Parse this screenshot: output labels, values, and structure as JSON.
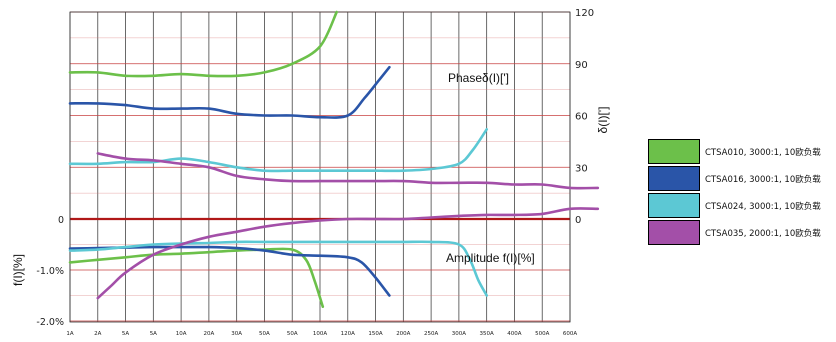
{
  "chart_data": {
    "type": "line",
    "x_ticks": [
      "1A",
      "2A",
      "5A",
      "5A",
      "10A",
      "20A",
      "30A",
      "50A",
      "50A",
      "100A",
      "120A",
      "150A",
      "200A",
      "250A",
      "300A",
      "350A",
      "400A",
      "500A",
      "600A"
    ],
    "left_axis": {
      "label": "f(I)[%]",
      "ticks": [
        {
          "value": 0,
          "label": "0"
        },
        {
          "value": -1,
          "label": "-1.0%"
        },
        {
          "value": -2,
          "label": "-2.0%"
        }
      ],
      "range": [
        -2,
        0.5
      ]
    },
    "right_axis": {
      "label": "δ(I)[']",
      "ticks": [
        120,
        90,
        60,
        30,
        0
      ],
      "range": [
        0,
        120
      ]
    },
    "annotations": {
      "phase": "Phaseδ(I)[']",
      "amplitude": "Amplitude f(I)[%]"
    },
    "series": [
      {
        "name": "CTSA010, 3000:1, 10欧负载",
        "color": "#6cc04a",
        "phase": [
          [
            0,
            85
          ],
          [
            1,
            85
          ],
          [
            2,
            83
          ],
          [
            3,
            83
          ],
          [
            4,
            84
          ],
          [
            5,
            83
          ],
          [
            6,
            83
          ],
          [
            7,
            85
          ],
          [
            8,
            90
          ],
          [
            9,
            100
          ],
          [
            9.6,
            120
          ]
        ],
        "amplitude": [
          [
            0,
            -0.85
          ],
          [
            1,
            -0.8
          ],
          [
            2,
            -0.75
          ],
          [
            3,
            -0.7
          ],
          [
            4,
            -0.68
          ],
          [
            5,
            -0.65
          ],
          [
            6,
            -0.62
          ],
          [
            7,
            -0.6
          ],
          [
            8,
            -0.6
          ],
          [
            8.5,
            -0.8
          ],
          [
            8.8,
            -1.2
          ],
          [
            9.1,
            -1.72
          ]
        ]
      },
      {
        "name": "CTSA016, 3000:1, 10欧负载",
        "color": "#2a55a8",
        "phase": [
          [
            0,
            67
          ],
          [
            1,
            67
          ],
          [
            2,
            66
          ],
          [
            3,
            64
          ],
          [
            4,
            64
          ],
          [
            5,
            64
          ],
          [
            6,
            61
          ],
          [
            7,
            60
          ],
          [
            8,
            60
          ],
          [
            9,
            59
          ],
          [
            10,
            60
          ],
          [
            10.6,
            70
          ],
          [
            11.1,
            80
          ],
          [
            11.5,
            88
          ]
        ],
        "amplitude": [
          [
            0,
            -0.58
          ],
          [
            1,
            -0.57
          ],
          [
            2,
            -0.56
          ],
          [
            3,
            -0.55
          ],
          [
            4,
            -0.55
          ],
          [
            5,
            -0.55
          ],
          [
            6,
            -0.57
          ],
          [
            7,
            -0.62
          ],
          [
            8,
            -0.7
          ],
          [
            9,
            -0.72
          ],
          [
            10,
            -0.75
          ],
          [
            10.5,
            -0.85
          ],
          [
            11,
            -1.15
          ],
          [
            11.5,
            -1.5
          ]
        ]
      },
      {
        "name": "CTSA024, 3000:1, 10欧负载",
        "color": "#5cc8d4",
        "phase": [
          [
            0,
            32
          ],
          [
            1,
            32
          ],
          [
            2,
            33
          ],
          [
            3,
            33
          ],
          [
            4,
            35
          ],
          [
            5,
            33
          ],
          [
            6,
            30
          ],
          [
            7,
            28
          ],
          [
            8,
            28
          ],
          [
            9,
            28
          ],
          [
            10,
            28
          ],
          [
            11,
            28
          ],
          [
            12,
            28
          ],
          [
            13,
            29
          ],
          [
            14,
            32
          ],
          [
            14.5,
            40
          ],
          [
            15,
            52
          ]
        ],
        "amplitude": [
          [
            0,
            -0.62
          ],
          [
            1,
            -0.6
          ],
          [
            2,
            -0.55
          ],
          [
            3,
            -0.5
          ],
          [
            4,
            -0.48
          ],
          [
            5,
            -0.47
          ],
          [
            6,
            -0.45
          ],
          [
            7,
            -0.45
          ],
          [
            8,
            -0.45
          ],
          [
            9,
            -0.45
          ],
          [
            10,
            -0.45
          ],
          [
            11,
            -0.45
          ],
          [
            12,
            -0.45
          ],
          [
            13,
            -0.45
          ],
          [
            14,
            -0.5
          ],
          [
            14.4,
            -0.8
          ],
          [
            14.7,
            -1.2
          ],
          [
            15,
            -1.5
          ]
        ]
      },
      {
        "name": "CTSA035, 2000:1, 10欧负载",
        "color": "#a34fa8",
        "phase": [
          [
            1,
            38
          ],
          [
            2,
            35
          ],
          [
            3,
            34
          ],
          [
            4,
            32
          ],
          [
            5,
            30
          ],
          [
            6,
            25
          ],
          [
            7,
            23
          ],
          [
            8,
            22
          ],
          [
            9,
            22
          ],
          [
            10,
            22
          ],
          [
            11,
            22
          ],
          [
            12,
            22
          ],
          [
            13,
            21
          ],
          [
            14,
            21
          ],
          [
            15,
            21
          ],
          [
            16,
            20
          ],
          [
            17,
            20
          ],
          [
            18,
            18
          ],
          [
            19,
            18
          ]
        ],
        "amplitude": [
          [
            1,
            -1.55
          ],
          [
            1.5,
            -1.3
          ],
          [
            2,
            -1.05
          ],
          [
            3,
            -0.7
          ],
          [
            4,
            -0.5
          ],
          [
            5,
            -0.35
          ],
          [
            6,
            -0.25
          ],
          [
            7,
            -0.15
          ],
          [
            8,
            -0.08
          ],
          [
            9,
            -0.03
          ],
          [
            10,
            0.0
          ],
          [
            11,
            0.0
          ],
          [
            12,
            0.0
          ],
          [
            13,
            0.03
          ],
          [
            14,
            0.06
          ],
          [
            15,
            0.08
          ],
          [
            16,
            0.08
          ],
          [
            17,
            0.1
          ],
          [
            18,
            0.2
          ],
          [
            19,
            0.2
          ]
        ]
      }
    ],
    "grid": true
  }
}
